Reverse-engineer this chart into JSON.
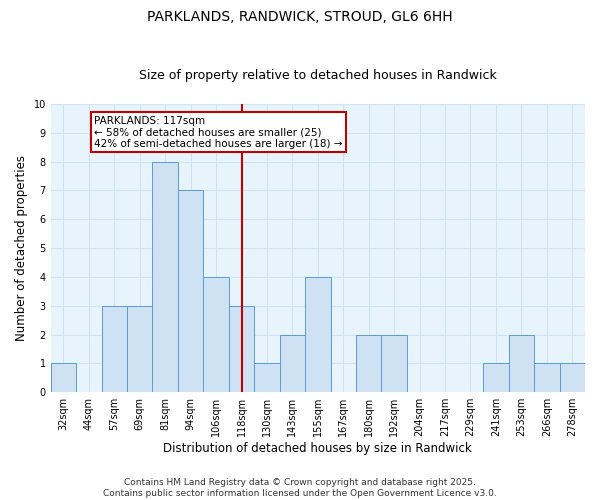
{
  "title": "PARKLANDS, RANDWICK, STROUD, GL6 6HH",
  "subtitle": "Size of property relative to detached houses in Randwick",
  "xlabel": "Distribution of detached houses by size in Randwick",
  "ylabel": "Number of detached properties",
  "categories": [
    "32sqm",
    "44sqm",
    "57sqm",
    "69sqm",
    "81sqm",
    "94sqm",
    "106sqm",
    "118sqm",
    "130sqm",
    "143sqm",
    "155sqm",
    "167sqm",
    "180sqm",
    "192sqm",
    "204sqm",
    "217sqm",
    "229sqm",
    "241sqm",
    "253sqm",
    "266sqm",
    "278sqm"
  ],
  "values": [
    1,
    0,
    3,
    3,
    8,
    7,
    4,
    3,
    1,
    2,
    4,
    0,
    2,
    2,
    0,
    0,
    0,
    1,
    2,
    1,
    1
  ],
  "bar_color": "#cfe2f3",
  "bar_edge_color": "#5b9bd5",
  "ref_line_index": 7,
  "ref_line_color": "#c00000",
  "annotation_text": "PARKLANDS: 117sqm\n← 58% of detached houses are smaller (25)\n42% of semi-detached houses are larger (18) →",
  "annotation_box_color": "#ffffff",
  "annotation_box_edge_color": "#c00000",
  "ylim": [
    0,
    10
  ],
  "yticks": [
    0,
    1,
    2,
    3,
    4,
    5,
    6,
    7,
    8,
    9,
    10
  ],
  "grid_color": "#d0e4f0",
  "background_color": "#e8f4fb",
  "footer_line1": "Contains HM Land Registry data © Crown copyright and database right 2025.",
  "footer_line2": "Contains public sector information licensed under the Open Government Licence v3.0.",
  "title_fontsize": 10,
  "subtitle_fontsize": 9,
  "axis_label_fontsize": 8.5,
  "tick_fontsize": 7,
  "annotation_fontsize": 7.5,
  "footer_fontsize": 6.5
}
